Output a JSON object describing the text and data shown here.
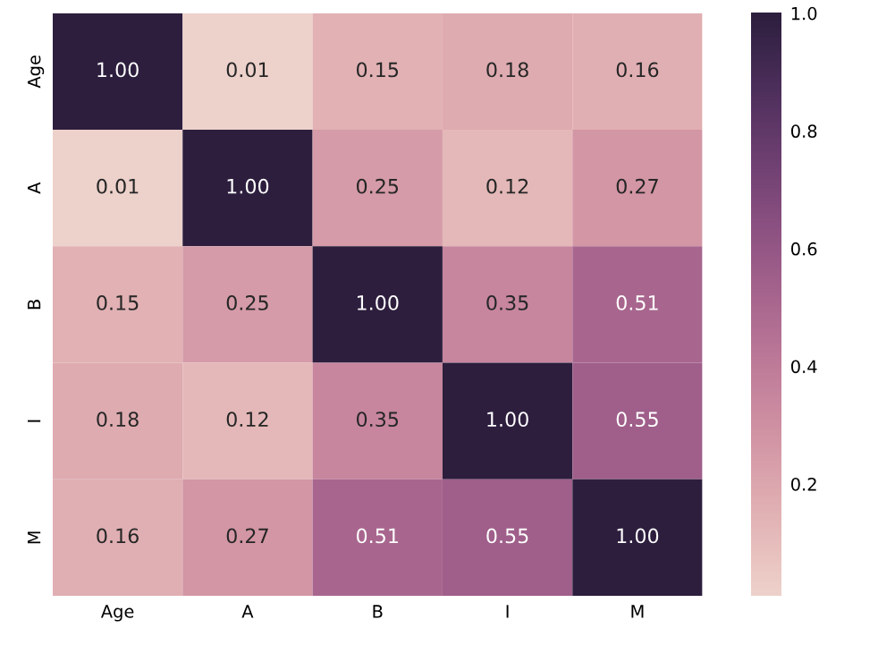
{
  "chart_data": {
    "type": "heatmap",
    "categories": [
      "Age",
      "A",
      "B",
      "I",
      "M"
    ],
    "y_categories": [
      "Age",
      "A",
      "B",
      "I",
      "M"
    ],
    "cells": [
      [
        1.0,
        0.01,
        0.15,
        0.18,
        0.16
      ],
      [
        0.01,
        1.0,
        0.25,
        0.12,
        0.27
      ],
      [
        0.15,
        0.25,
        1.0,
        0.35,
        0.51
      ],
      [
        0.18,
        0.12,
        0.35,
        1.0,
        0.55
      ],
      [
        0.16,
        0.27,
        0.51,
        0.55,
        1.0
      ]
    ],
    "cell_labels": [
      [
        "1.00",
        "0.01",
        "0.15",
        "0.18",
        "0.16"
      ],
      [
        "0.01",
        "1.00",
        "0.25",
        "0.12",
        "0.27"
      ],
      [
        "0.15",
        "0.25",
        "1.00",
        "0.35",
        "0.51"
      ],
      [
        "0.18",
        "0.12",
        "0.35",
        "1.00",
        "0.55"
      ],
      [
        "0.16",
        "0.27",
        "0.51",
        "0.55",
        "1.00"
      ]
    ],
    "clim": [
      0.01,
      1.0
    ],
    "cticks": [
      {
        "value": 0.2,
        "label": "0.2"
      },
      {
        "value": 0.4,
        "label": "0.4"
      },
      {
        "value": 0.6,
        "label": "0.6"
      },
      {
        "value": 0.8,
        "label": "0.8"
      },
      {
        "value": 1.0,
        "label": "1.0"
      }
    ]
  }
}
